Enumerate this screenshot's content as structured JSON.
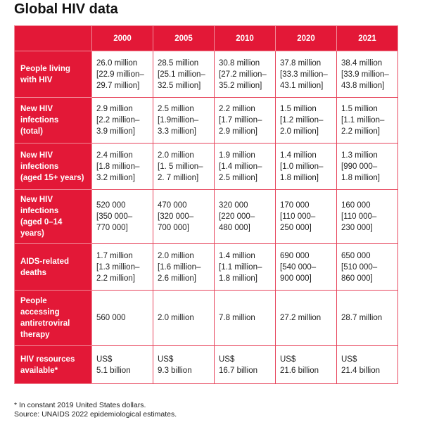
{
  "title": "Global HIV data",
  "columns": [
    "",
    "2000",
    "2005",
    "2010",
    "2020",
    "2021"
  ],
  "rows": [
    {
      "label": "People living\nwith HIV",
      "cells": [
        "26.0 million\n[22.9 million–\n29.7 million]",
        "28.5 million\n[25.1 million–\n32.5 million]",
        "30.8 million\n[27.2 million–\n35.2 million]",
        "37.8 million\n[33.3 million–\n43.1 million]",
        "38.4 million\n[33.9 million–\n43.8 million]"
      ]
    },
    {
      "label": "New HIV\ninfections\n(total)",
      "cells": [
        "2.9 million\n[2.2 million–\n3.9 million]",
        "2.5 million\n[1.9million–\n3.3 million]",
        "2.2 million\n[1.7 million–\n2.9 million]",
        "1.5 million\n[1.2 million–\n2.0 million]",
        "1.5 million\n[1.1 million–\n2.2 million]"
      ]
    },
    {
      "label": "New HIV\ninfections\n(aged 15+ years)",
      "cells": [
        "2.4 million\n[1.8 million–\n3.2 million]",
        "2.0 million\n[1. 5 million–\n2. 7 million]",
        "1.9 million\n[1.4 million–\n2.5 million]",
        "1.4 million\n[1.0 million–\n1.8 million]",
        "1.3 million\n[990 000–\n1.8 million]"
      ]
    },
    {
      "label": "New HIV\ninfections\n(aged 0–14\nyears)",
      "cells": [
        "520 000\n[350 000–\n770 000]",
        "470 000\n[320 000–\n700 000]",
        "320 000\n[220 000–\n480 000]",
        "170 000\n[110 000–\n250 000]",
        "160 000\n[110 000–\n230 000]"
      ]
    },
    {
      "label": "AIDS-related\ndeaths",
      "cells": [
        "1.7 million\n[1.3 million–\n2.2 million]",
        "2.0 million\n[1.6 million–\n2.6 million]",
        "1.4 million\n[1.1 million–\n1.8 million]",
        "690 000\n[540 000–\n900 000]",
        "650 000\n[510 000–\n860 000]"
      ]
    },
    {
      "label": "People\naccessing\nantiretroviral\ntherapy",
      "cells": [
        "560 000",
        "2.0 million",
        "7.8 million",
        "27.2 million",
        "28.7 million"
      ]
    },
    {
      "label": "HIV resources\navailable*",
      "cells": [
        "US$\n5.1 billion",
        "US$\n9.3 billion",
        "US$\n16.7 billion",
        "US$\n21.6 billion",
        "US$\n21.4 billion"
      ]
    }
  ],
  "footnotes": [
    "* In constant 2019 United States dollars.",
    "Source: UNAIDS 2022 epidemiological estimates."
  ],
  "colors": {
    "accent": "#e31837"
  }
}
